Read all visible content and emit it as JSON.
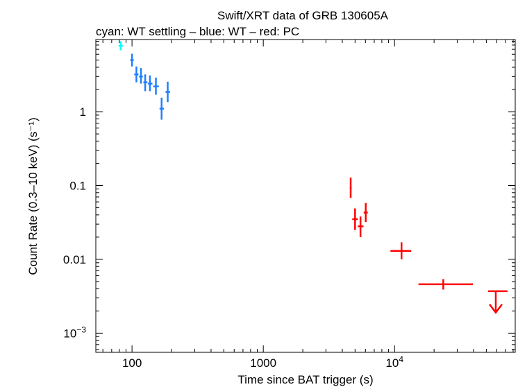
{
  "chart_data": {
    "type": "scatter",
    "title": "Swift/XRT data of GRB 130605A",
    "subtitle": "cyan: WT settling – blue: WT – red: PC",
    "xlabel": "Time since BAT trigger (s)",
    "ylabel": "Count Rate (0.3–10 keV) (s⁻¹)",
    "xscale": "log",
    "yscale": "log",
    "xlim": [
      53,
      83000
    ],
    "ylim": [
      0.00055,
      9.5
    ],
    "x_ticks": [
      {
        "value": 100,
        "label": "100",
        "sup": ""
      },
      {
        "value": 1000,
        "label": "1000",
        "sup": ""
      },
      {
        "value": 10000,
        "label": "10",
        "sup": "4"
      }
    ],
    "y_ticks": [
      {
        "value": 0.001,
        "label": "10",
        "sup": "−3"
      },
      {
        "value": 0.01,
        "label": "0.01",
        "sup": ""
      },
      {
        "value": 0.1,
        "label": "0.1",
        "sup": ""
      },
      {
        "value": 1,
        "label": "1",
        "sup": ""
      }
    ],
    "series": [
      {
        "name": "WT settling",
        "color": "#00ffff",
        "points": [
          {
            "x": 82,
            "xlo": 79,
            "xhi": 85,
            "y": 7.8,
            "ylo": 6.8,
            "yhi": 9.0
          }
        ]
      },
      {
        "name": "WT",
        "color": "#1e7fff",
        "points": [
          {
            "x": 100,
            "xlo": 97,
            "xhi": 103,
            "y": 5.0,
            "ylo": 4.1,
            "yhi": 6.1
          },
          {
            "x": 108,
            "xlo": 104,
            "xhi": 112,
            "y": 3.2,
            "ylo": 2.5,
            "yhi": 4.1
          },
          {
            "x": 117,
            "xlo": 113,
            "xhi": 121,
            "y": 3.0,
            "ylo": 2.4,
            "yhi": 3.9
          },
          {
            "x": 126,
            "xlo": 122,
            "xhi": 131,
            "y": 2.5,
            "ylo": 1.9,
            "yhi": 3.2
          },
          {
            "x": 137,
            "xlo": 132,
            "xhi": 143,
            "y": 2.4,
            "ylo": 1.9,
            "yhi": 3.1
          },
          {
            "x": 152,
            "xlo": 145,
            "xhi": 160,
            "y": 2.2,
            "ylo": 1.7,
            "yhi": 2.9
          },
          {
            "x": 168,
            "xlo": 162,
            "xhi": 175,
            "y": 1.1,
            "ylo": 0.78,
            "yhi": 1.55
          },
          {
            "x": 187,
            "xlo": 180,
            "xhi": 195,
            "y": 1.85,
            "ylo": 1.35,
            "yhi": 2.55
          }
        ]
      },
      {
        "name": "PC",
        "color": "#ff0000",
        "points": [
          {
            "x": 4630,
            "xlo": 4560,
            "xhi": 4700,
            "y": 0.093,
            "ylo": 0.068,
            "yhi": 0.128
          },
          {
            "x": 5000,
            "xlo": 4760,
            "xhi": 5250,
            "y": 0.035,
            "ylo": 0.025,
            "yhi": 0.049
          },
          {
            "x": 5500,
            "xlo": 5250,
            "xhi": 5800,
            "y": 0.028,
            "ylo": 0.02,
            "yhi": 0.038
          },
          {
            "x": 6030,
            "xlo": 5820,
            "xhi": 6250,
            "y": 0.043,
            "ylo": 0.032,
            "yhi": 0.058
          },
          {
            "x": 11300,
            "xlo": 9300,
            "xhi": 13400,
            "y": 0.013,
            "ylo": 0.01,
            "yhi": 0.017
          },
          {
            "x": 23500,
            "xlo": 15200,
            "xhi": 39500,
            "y": 0.0046,
            "ylo": 0.0039,
            "yhi": 0.0054
          },
          {
            "x": 59000,
            "xlo": 51500,
            "xhi": 72500,
            "y": 0.0037,
            "upper_limit": true,
            "arrow_to": 0.0019
          }
        ]
      }
    ]
  }
}
